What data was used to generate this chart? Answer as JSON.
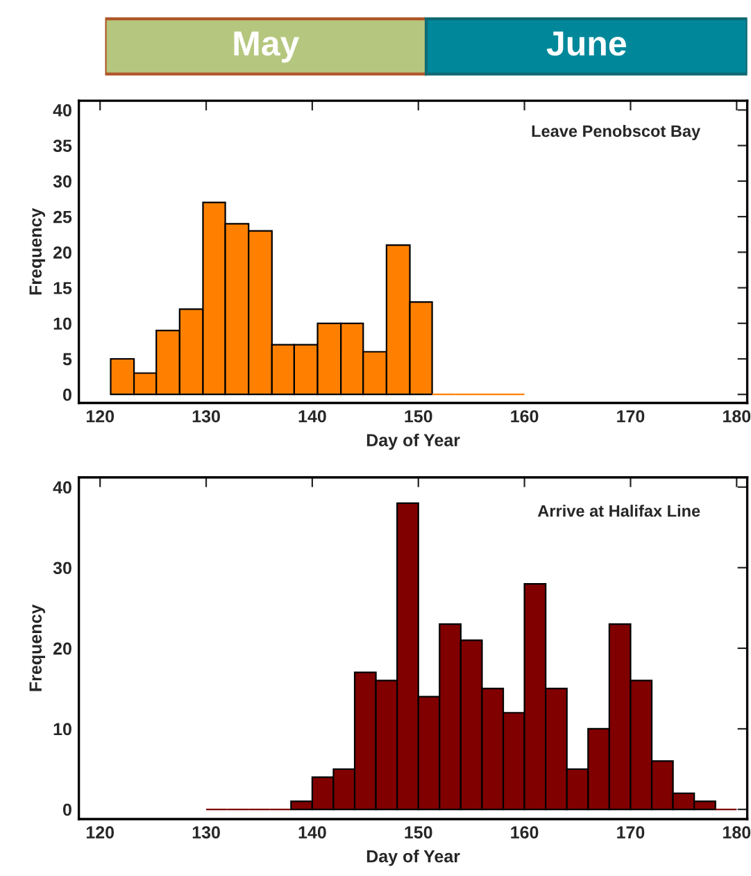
{
  "chart_data": [
    {
      "type": "other",
      "annotations": [
        "May",
        "June"
      ]
    },
    {
      "type": "histogram",
      "xlabel": "Day of Year",
      "ylabel": "Frequency",
      "annotations": [
        "Leave Penobscot Bay"
      ],
      "bins": [
        121,
        123.2,
        125.3,
        127.5,
        129.7,
        131.8,
        134,
        136.2,
        138.3,
        140.5,
        142.7,
        144.8,
        147,
        149.2,
        151.3,
        153.5,
        155.7,
        157.8,
        160
      ],
      "values": [
        5,
        3,
        9,
        12,
        27,
        24,
        23,
        7,
        7,
        10,
        10,
        6,
        21,
        13,
        0,
        0,
        0,
        0
      ],
      "color": "#ff8000",
      "xlim": [
        118,
        181
      ],
      "xticks": [
        120,
        130,
        140,
        150,
        160,
        170,
        180
      ],
      "ylim": [
        -1.2,
        41.3
      ],
      "yticks": [
        0,
        5,
        10,
        15,
        20,
        25,
        30,
        35,
        40
      ]
    },
    {
      "type": "histogram",
      "xlabel": "Day of Year",
      "ylabel": "Frequency",
      "annotations": [
        "Arrive at Halifax Line"
      ],
      "bins": [
        130,
        132,
        134,
        136,
        138,
        140,
        142,
        144,
        146,
        148,
        150,
        152,
        154,
        156,
        158,
        160,
        162,
        164,
        166,
        168,
        170,
        172,
        174,
        176,
        178,
        180
      ],
      "values": [
        0,
        0,
        0,
        0,
        1,
        4,
        5,
        17,
        16,
        38,
        14,
        23,
        21,
        15,
        12,
        28,
        15,
        5,
        10,
        23,
        16,
        6,
        2,
        1,
        0
      ],
      "color": "#800000",
      "xlim": [
        118,
        181
      ],
      "xticks": [
        120,
        130,
        140,
        150,
        160,
        170,
        180
      ],
      "ylim": [
        -1.2,
        41.2
      ],
      "yticks": [
        0,
        10,
        20,
        30,
        40
      ]
    }
  ]
}
